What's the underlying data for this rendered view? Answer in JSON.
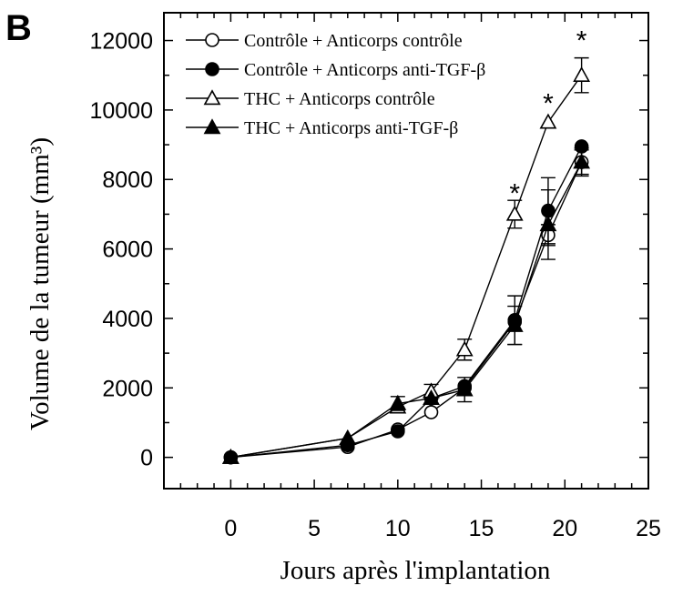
{
  "panel_label": "B",
  "chart_data": {
    "type": "line",
    "xlabel": "Jours après l'implantation",
    "ylabel": "Volume de la tumeur (mm³)",
    "xlim": [
      -4,
      25
    ],
    "ylim": [
      -900,
      12800
    ],
    "xticks": [
      0,
      5,
      10,
      15,
      20,
      25
    ],
    "yticks": [
      0,
      2000,
      4000,
      6000,
      8000,
      10000,
      12000
    ],
    "grid": false,
    "legend_position": "top-left",
    "series": [
      {
        "name": "Contrôle + Anticorps contrôle",
        "marker": "circle",
        "filled": false,
        "color": "#000000",
        "x": [
          0,
          7,
          10,
          12,
          14,
          17,
          19,
          21
        ],
        "y": [
          0,
          300,
          800,
          1300,
          2000,
          3900,
          6400,
          8500
        ],
        "err": [
          0,
          0,
          0,
          0,
          0,
          0,
          300,
          350
        ]
      },
      {
        "name": "Contrôle + Anticorps anti-TGF-β",
        "marker": "circle",
        "filled": true,
        "color": "#000000",
        "x": [
          0,
          7,
          10,
          12,
          14,
          17,
          19,
          21
        ],
        "y": [
          0,
          350,
          750,
          1700,
          2050,
          3950,
          7100,
          8950
        ],
        "err": [
          0,
          0,
          0,
          0,
          0,
          700,
          950,
          0
        ]
      },
      {
        "name": "THC + Anticorps contrôle",
        "marker": "triangle",
        "filled": false,
        "color": "#000000",
        "x": [
          0,
          7,
          10,
          12,
          14,
          17,
          19,
          21
        ],
        "y": [
          0,
          550,
          1450,
          1900,
          3100,
          7000,
          9650,
          11000
        ],
        "err": [
          0,
          0,
          0,
          200,
          300,
          400,
          0,
          500
        ]
      },
      {
        "name": "THC + Anticorps anti-TGF-β",
        "marker": "triangle",
        "filled": true,
        "color": "#000000",
        "x": [
          0,
          7,
          10,
          12,
          14,
          17,
          19,
          21
        ],
        "y": [
          0,
          550,
          1550,
          1700,
          1950,
          3800,
          6700,
          8500
        ],
        "err": [
          0,
          0,
          200,
          0,
          350,
          550,
          1000,
          400
        ]
      }
    ],
    "annotations": [
      {
        "text": "*",
        "x": 17,
        "y": 7700
      },
      {
        "text": "*",
        "x": 19,
        "y": 10300
      },
      {
        "text": "*",
        "x": 21,
        "y": 12100
      }
    ]
  }
}
